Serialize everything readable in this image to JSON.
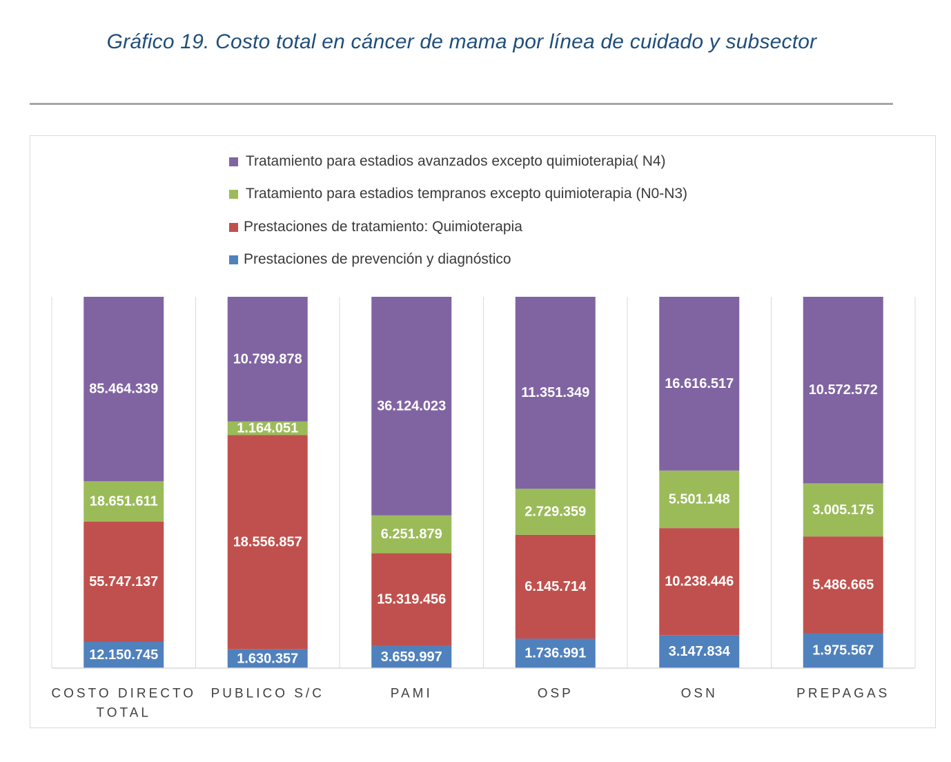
{
  "title": "Gráfico 19. Costo total en cáncer de mama por línea de cuidado y subsector",
  "colors": {
    "n4": "#8064a2",
    "n0n3": "#9bbb59",
    "quimio": "#c0504d",
    "prevencion": "#4f81bd",
    "value_label": "#ffffff",
    "axis_label": "#404040",
    "grid": "#d9d9d9"
  },
  "legend": [
    {
      "label": "Tratamiento para estadios avanzados  excepto quimioterapia( N4)",
      "color": "#8064a2"
    },
    {
      "label": "Tratamiento para estadios tempranos excepto quimioterapia (N0-N3)",
      "color": "#9bbb59"
    },
    {
      "label": "Prestaciones de tratamiento: Quimioterapia",
      "color": "#c0504d"
    },
    {
      "label": "Prestaciones de prevención y diagnóstico",
      "color": "#4f81bd"
    }
  ],
  "chart_data": {
    "type": "bar",
    "stacked": "percent",
    "title": "Gráfico 19. Costo total en cáncer de mama por línea de cuidado y subsector",
    "categories": [
      "COSTO DIRECTO TOTAL",
      "PUBLICO S/C",
      "PAMI",
      "OSP",
      "OSN",
      "PREPAGAS"
    ],
    "category_lines": [
      [
        "COSTO DIRECTO",
        "TOTAL"
      ],
      [
        "PUBLICO S/C"
      ],
      [
        "PAMI"
      ],
      [
        "OSP"
      ],
      [
        "OSN"
      ],
      [
        "PREPAGAS"
      ]
    ],
    "series": [
      {
        "name": "Prestaciones de prevención y diagnóstico",
        "color": "#4f81bd",
        "values": [
          12150745,
          1630357,
          3659997,
          1736991,
          3147834,
          1975567
        ],
        "labels": [
          "12.150.745",
          "1.630.357",
          "3.659.997",
          "1.736.991",
          "3.147.834",
          "1.975.567"
        ]
      },
      {
        "name": "Prestaciones de tratamiento: Quimioterapia",
        "color": "#c0504d",
        "values": [
          55747137,
          18556857,
          15319456,
          6145714,
          10238446,
          5486665
        ],
        "labels": [
          "55.747.137",
          "18.556.857",
          "15.319.456",
          "6.145.714",
          "10.238.446",
          "5.486.665"
        ]
      },
      {
        "name": "Tratamiento para estadios tempranos excepto quimioterapia (N0-N3)",
        "color": "#9bbb59",
        "values": [
          18651611,
          1164051,
          6251879,
          2729359,
          5501148,
          3005175
        ],
        "labels": [
          "18.651.611",
          "1.164.051",
          "6.251.879",
          "2.729.359",
          "5.501.148",
          "3.005.175"
        ]
      },
      {
        "name": "Tratamiento para estadios avanzados  excepto quimioterapia( N4)",
        "color": "#8064a2",
        "values": [
          85464339,
          10799878,
          36124023,
          11351349,
          16616517,
          10572572
        ],
        "labels": [
          "85.464.339",
          "10.799.878",
          "36.124.023",
          "11.351.349",
          "16.616.517",
          "10.572.572"
        ]
      }
    ],
    "ylim": [
      0,
      100
    ],
    "xlabel": "",
    "ylabel": "",
    "grid": "vertical separators between categories",
    "legend_position": "top"
  }
}
